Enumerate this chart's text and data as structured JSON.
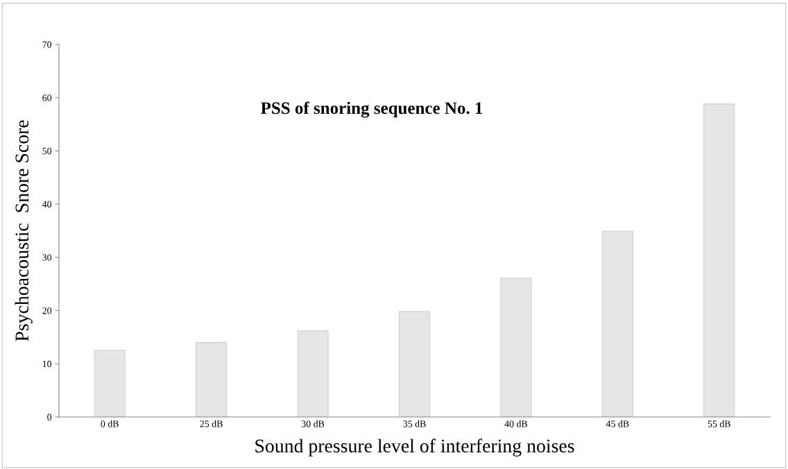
{
  "chart_data": {
    "type": "bar",
    "title": "PSS of snoring sequence No. 1",
    "xlabel": "Sound pressure level of interfering noises",
    "ylabel": "Psychoacoustic  Snore Score",
    "categories": [
      "0 dB",
      "25 dB",
      "30 dB",
      "35 dB",
      "40 dB",
      "45 dB",
      "55 dB"
    ],
    "values": [
      12.5,
      14.0,
      16.2,
      19.8,
      26.1,
      34.9,
      58.8
    ],
    "color": "#e6e6e6",
    "ylim": [
      0,
      70
    ],
    "yticks": [
      0,
      10,
      20,
      30,
      40,
      50,
      60,
      70
    ],
    "grid": false
  }
}
